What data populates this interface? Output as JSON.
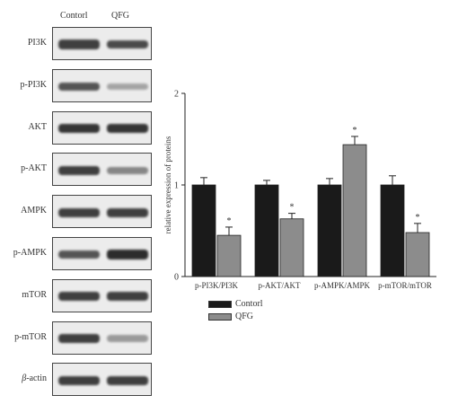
{
  "blot": {
    "lanes": [
      "Contorl",
      "QFG"
    ],
    "rows": [
      {
        "label": "PI3K",
        "label_italic_prefix": "",
        "intensity": [
          0.85,
          0.8
        ]
      },
      {
        "label": "p-PI3K",
        "label_italic_prefix": "",
        "intensity": [
          0.75,
          0.35
        ]
      },
      {
        "label": "AKT",
        "label_italic_prefix": "",
        "intensity": [
          0.9,
          0.9
        ]
      },
      {
        "label": "p-AKT",
        "label_italic_prefix": "",
        "intensity": [
          0.85,
          0.5
        ]
      },
      {
        "label": "AMPK",
        "label_italic_prefix": "",
        "intensity": [
          0.85,
          0.85
        ]
      },
      {
        "label": "p-AMPK",
        "label_italic_prefix": "",
        "intensity": [
          0.75,
          0.95
        ]
      },
      {
        "label": "mTOR",
        "label_italic_prefix": "",
        "intensity": [
          0.85,
          0.85
        ]
      },
      {
        "label": "p-mTOR",
        "label_italic_prefix": "",
        "intensity": [
          0.85,
          0.4
        ]
      },
      {
        "label": "-actin",
        "label_italic_prefix": "β",
        "intensity": [
          0.85,
          0.85
        ]
      }
    ]
  },
  "chart_data": {
    "type": "bar",
    "categories": [
      "p-PI3K/PI3K",
      "p-AKT/AKT",
      "p-AMPK/AMPK",
      "p-mTOR/mTOR"
    ],
    "series": [
      {
        "name": "Contorl",
        "color": "#1a1a1a",
        "values": [
          1.0,
          1.0,
          1.0,
          1.0
        ],
        "errors": [
          0.08,
          0.05,
          0.07,
          0.1
        ]
      },
      {
        "name": "QFG",
        "color": "#8c8c8c",
        "values": [
          0.45,
          0.63,
          1.44,
          0.48
        ],
        "errors": [
          0.09,
          0.06,
          0.09,
          0.1
        ]
      }
    ],
    "significance_marker": "*",
    "ylabel": "relative expression of proteins",
    "ylim": [
      0,
      2
    ],
    "yticks": [
      "0",
      "1",
      "2"
    ],
    "legend_position": "bottom-left",
    "grid": false
  }
}
